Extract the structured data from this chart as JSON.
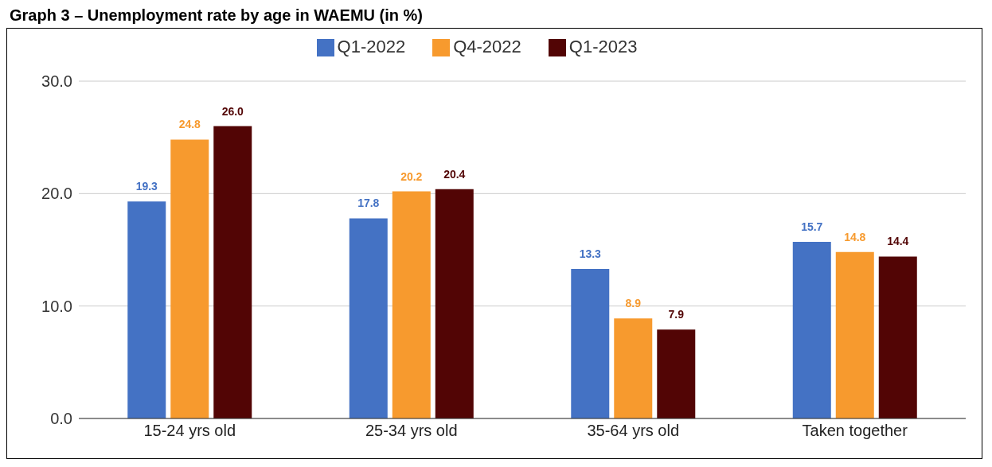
{
  "chart_data": {
    "type": "bar",
    "title": "Graph 3 – Unemployment rate by age in WAEMU (in %)",
    "categories": [
      "15-24 yrs old",
      "25-34 yrs old",
      "35-64 yrs old",
      "Taken together"
    ],
    "series": [
      {
        "name": "Q1-2022",
        "color": "#4472c4",
        "values": [
          19.3,
          17.8,
          13.3,
          15.7
        ],
        "value_labels": [
          "19.3",
          "17.8",
          "13.3",
          "15.7"
        ]
      },
      {
        "name": "Q4-2022",
        "color": "#f79a2e",
        "values": [
          24.8,
          20.2,
          8.9,
          14.8
        ],
        "value_labels": [
          "24.8",
          "20.2",
          "8.9",
          "14.8"
        ]
      },
      {
        "name": "Q1-2023",
        "color": "#520505",
        "values": [
          26.0,
          20.4,
          7.9,
          14.4
        ],
        "value_labels": [
          "26.0",
          "20.4",
          "7.9",
          "14.4"
        ]
      }
    ],
    "ylim": [
      0,
      30
    ],
    "yticks": [
      {
        "value": 0,
        "label": "0.0"
      },
      {
        "value": 10,
        "label": "10.0"
      },
      {
        "value": 20,
        "label": "20.0"
      },
      {
        "value": 30,
        "label": "30.0"
      }
    ],
    "grid": "y",
    "legend": "top"
  }
}
